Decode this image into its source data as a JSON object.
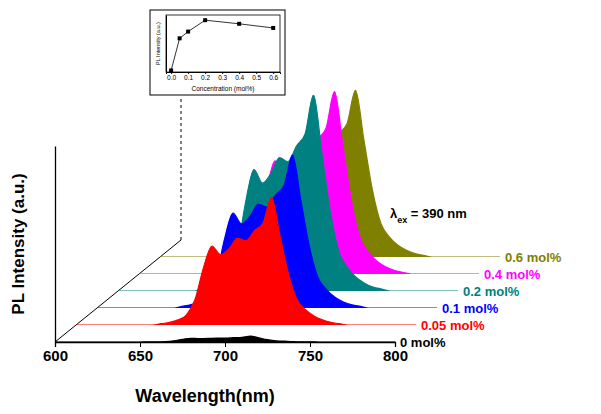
{
  "chart_data": [
    {
      "type": "area",
      "x_label": "Wavelength(nm)",
      "y_label": "PL Intensity (a.u.)",
      "annotation": "λex = 390 nm",
      "x": [
        600,
        605,
        610,
        615,
        620,
        625,
        630,
        635,
        640,
        645,
        650,
        655,
        660,
        665,
        670,
        675,
        680,
        685,
        690,
        695,
        700,
        705,
        710,
        715,
        720,
        725,
        730,
        735,
        740,
        745,
        750,
        755,
        760,
        765,
        770,
        775,
        780,
        785,
        790,
        795,
        800
      ],
      "series": [
        {
          "name": "0 mol%",
          "color": "#000000",
          "values": [
            0,
            0,
            0,
            0,
            0,
            0,
            0,
            0,
            0,
            0,
            0,
            0.1,
            0.1,
            0.2,
            0.6,
            1.4,
            1.9,
            1.7,
            1.8,
            2,
            2,
            2.2,
            2.4,
            3,
            2.1,
            1.2,
            0.6,
            0.4,
            0.2,
            0.1,
            0.1,
            0,
            0,
            0,
            0,
            0,
            0,
            0,
            0,
            0,
            0
          ]
        },
        {
          "name": "0.05 mol%",
          "color": "#ff0000",
          "values": [
            0,
            0,
            0,
            0,
            0,
            0,
            0,
            0,
            0,
            0,
            0.7,
            1.3,
            2.6,
            5.2,
            13,
            29.3,
            40.3,
            35.8,
            39,
            44.2,
            42.9,
            48.1,
            52,
            65,
            45.5,
            26,
            13,
            7.8,
            4.6,
            2.6,
            1.3,
            0.7,
            0,
            0,
            0,
            0,
            0,
            0,
            0,
            0,
            0
          ]
        },
        {
          "name": "0.1 mol%",
          "color": "#0000ff",
          "values": [
            0,
            0,
            0,
            0,
            0,
            0,
            0,
            0,
            0,
            0,
            0.8,
            1.6,
            3.1,
            6.2,
            15.6,
            35.1,
            48.4,
            42.9,
            46.8,
            53,
            51.5,
            57.7,
            62.4,
            78,
            54.6,
            31.2,
            15.6,
            9.4,
            5.5,
            3.1,
            1.6,
            0.8,
            0,
            0,
            0,
            0,
            0,
            0,
            0,
            0,
            0
          ]
        },
        {
          "name": "0.2 mol%",
          "color": "#008080",
          "values": [
            0,
            0,
            0,
            0,
            0,
            0,
            0,
            0,
            0,
            0,
            1,
            2,
            4,
            8,
            20,
            45,
            62,
            55,
            60,
            68,
            66,
            74,
            80,
            100,
            70,
            40,
            20,
            12,
            7,
            4,
            2,
            1,
            0,
            0,
            0,
            0,
            0,
            0,
            0,
            0,
            0
          ]
        },
        {
          "name": "0.4 mol%",
          "color": "#ff00ff",
          "values": [
            0,
            0,
            0,
            0,
            0,
            0,
            0,
            0,
            0,
            0,
            0.9,
            1.9,
            3.7,
            7.4,
            18.6,
            41.9,
            57.7,
            51.2,
            55.8,
            63.2,
            61.4,
            68.8,
            74.4,
            93,
            65.1,
            37.2,
            18.6,
            11.2,
            6.5,
            3.7,
            1.9,
            0.9,
            0,
            0,
            0,
            0,
            0,
            0,
            0,
            0,
            0
          ]
        },
        {
          "name": "0.6 mol%",
          "color": "#808000",
          "values": [
            0,
            0,
            0,
            0,
            0,
            0,
            0,
            0,
            0,
            0,
            0.9,
            1.7,
            3.4,
            6.8,
            17,
            38.3,
            52.7,
            46.8,
            51,
            57.8,
            56.1,
            62.9,
            68,
            85,
            59.5,
            34,
            17,
            10.2,
            6,
            3.4,
            1.7,
            0.9,
            0,
            0,
            0,
            0,
            0,
            0,
            0,
            0,
            0
          ]
        }
      ],
      "xlim": [
        600,
        800
      ],
      "xticks": [
        600,
        650,
        700,
        750,
        800
      ],
      "ylim": [
        0,
        100
      ],
      "tick_labels": "x"
    },
    {
      "type": "line",
      "x_label": "Concentration (mol%)",
      "y_label": "PL Intensity (a.u.)",
      "x": [
        0,
        0.05,
        0.1,
        0.2,
        0.4,
        0.6
      ],
      "values": [
        3,
        65,
        78,
        100,
        93,
        85
      ],
      "color": "#000000",
      "marker": "square",
      "xlim": [
        -0.03,
        0.64
      ],
      "xticks": [
        {
          "value": 0,
          "label": "0.0"
        },
        0.1,
        0.2,
        0.3,
        0.4,
        0.5,
        0.6
      ],
      "ylim": [
        0,
        110
      ],
      "tick_labels": "x"
    }
  ]
}
